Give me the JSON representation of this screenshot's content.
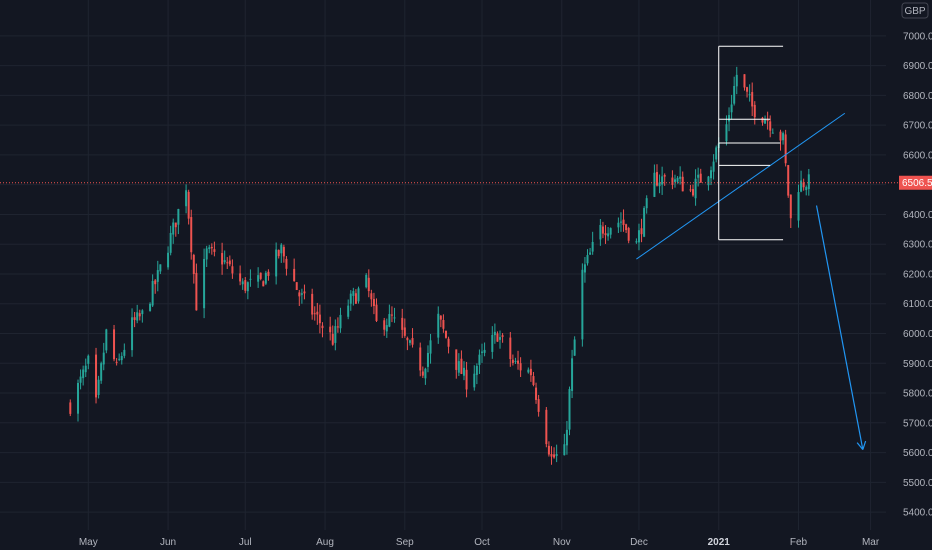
{
  "chart_data": {
    "type": "candlestick",
    "currency_badge": "GBP",
    "y_axis_side": "right",
    "ylim": [
      5360,
      7060
    ],
    "yticks": [
      5400,
      5500,
      5600,
      5700,
      5800,
      5900,
      6000,
      6100,
      6200,
      6300,
      6400,
      6500,
      6600,
      6700,
      6800,
      6900,
      7000
    ],
    "ytick_labels": [
      "5400.0",
      "5500.0",
      "5600.0",
      "5700.0",
      "5800.0",
      "5900.0",
      "6000.0",
      "6100.0",
      "6200.0",
      "6300.0",
      "6400.0",
      "6500.0",
      "6600.0",
      "6700.0",
      "6800.0",
      "6900.0",
      "7000.0"
    ],
    "grid": true,
    "x_start": "2020-04-20",
    "x_end": "2021-03-07",
    "x_ticks": [
      {
        "date": "2020-05-01",
        "label": "May",
        "bold": false
      },
      {
        "date": "2020-06-01",
        "label": "Jun",
        "bold": false
      },
      {
        "date": "2020-07-01",
        "label": "Jul",
        "bold": false
      },
      {
        "date": "2020-08-01",
        "label": "Aug",
        "bold": false
      },
      {
        "date": "2020-09-01",
        "label": "Sep",
        "bold": false
      },
      {
        "date": "2020-10-01",
        "label": "Oct",
        "bold": false
      },
      {
        "date": "2020-11-01",
        "label": "Nov",
        "bold": false
      },
      {
        "date": "2020-12-01",
        "label": "Dec",
        "bold": false
      },
      {
        "date": "2021-01-01",
        "label": "2021",
        "bold": true
      },
      {
        "date": "2021-02-01",
        "label": "Feb",
        "bold": false
      },
      {
        "date": "2021-03-01",
        "label": "Mar",
        "bold": false
      }
    ],
    "last_price": 6506.5,
    "last_price_label": "6506.5",
    "colors": {
      "up": "#26a69a",
      "down": "#ef5350",
      "background": "#131722",
      "grid": "#1f2430",
      "axis_text": "#b2b5be",
      "drawing_line": "#2196f3",
      "drawing_white": "#ffffff",
      "price_line": "#ef5350"
    },
    "close_path": [
      [
        "2020-04-24",
        5760
      ],
      [
        "2020-05-01",
        5900
      ],
      [
        "2020-05-04",
        5760
      ],
      [
        "2020-05-08",
        6000
      ],
      [
        "2020-05-12",
        5880
      ],
      [
        "2020-05-18",
        6030
      ],
      [
        "2020-05-22",
        6060
      ],
      [
        "2020-05-28",
        6190
      ],
      [
        "2020-06-03",
        6350
      ],
      [
        "2020-06-08",
        6500
      ],
      [
        "2020-06-12",
        6100
      ],
      [
        "2020-06-16",
        6270
      ],
      [
        "2020-06-22",
        6250
      ],
      [
        "2020-06-30",
        6160
      ],
      [
        "2020-07-07",
        6170
      ],
      [
        "2020-07-15",
        6280
      ],
      [
        "2020-07-22",
        6130
      ],
      [
        "2020-07-29",
        6050
      ],
      [
        "2020-08-04",
        5980
      ],
      [
        "2020-08-10",
        6100
      ],
      [
        "2020-08-17",
        6170
      ],
      [
        "2020-08-21",
        6030
      ],
      [
        "2020-08-27",
        6050
      ],
      [
        "2020-09-03",
        5950
      ],
      [
        "2020-09-08",
        5880
      ],
      [
        "2020-09-14",
        6050
      ],
      [
        "2020-09-21",
        5900
      ],
      [
        "2020-09-25",
        5840
      ],
      [
        "2020-10-01",
        5920
      ],
      [
        "2020-10-07",
        6000
      ],
      [
        "2020-10-13",
        5900
      ],
      [
        "2020-10-20",
        5870
      ],
      [
        "2020-10-28",
        5580
      ],
      [
        "2020-11-02",
        5600
      ],
      [
        "2020-11-05",
        5900
      ],
      [
        "2020-11-09",
        6200
      ],
      [
        "2020-11-16",
        6350
      ],
      [
        "2020-11-24",
        6380
      ],
      [
        "2020-11-30",
        6300
      ],
      [
        "2020-12-07",
        6520
      ],
      [
        "2020-12-15",
        6520
      ],
      [
        "2020-12-21",
        6480
      ],
      [
        "2020-12-28",
        6550
      ],
      [
        "2021-01-04",
        6700
      ],
      [
        "2021-01-08",
        6870
      ],
      [
        "2021-01-14",
        6760
      ],
      [
        "2021-01-20",
        6720
      ],
      [
        "2021-01-26",
        6650
      ],
      [
        "2021-01-29",
        6380
      ],
      [
        "2021-02-01",
        6500
      ],
      [
        "2021-02-04",
        6510
      ],
      [
        "2021-02-05",
        6506.5
      ]
    ],
    "annotations": {
      "trendline": {
        "from": [
          "2020-11-30",
          6250
        ],
        "to": [
          "2021-02-19",
          6740
        ]
      },
      "projection_arrow": {
        "from": [
          "2021-02-08",
          6430
        ],
        "to": [
          "2021-02-26",
          5610
        ]
      },
      "range_box": {
        "date_from": "2021-01-01",
        "date_to": "2021-01-26",
        "levels": [
          6965,
          6720,
          6640,
          6565,
          6315
        ],
        "short_level_date_to": "2021-01-21"
      }
    }
  }
}
